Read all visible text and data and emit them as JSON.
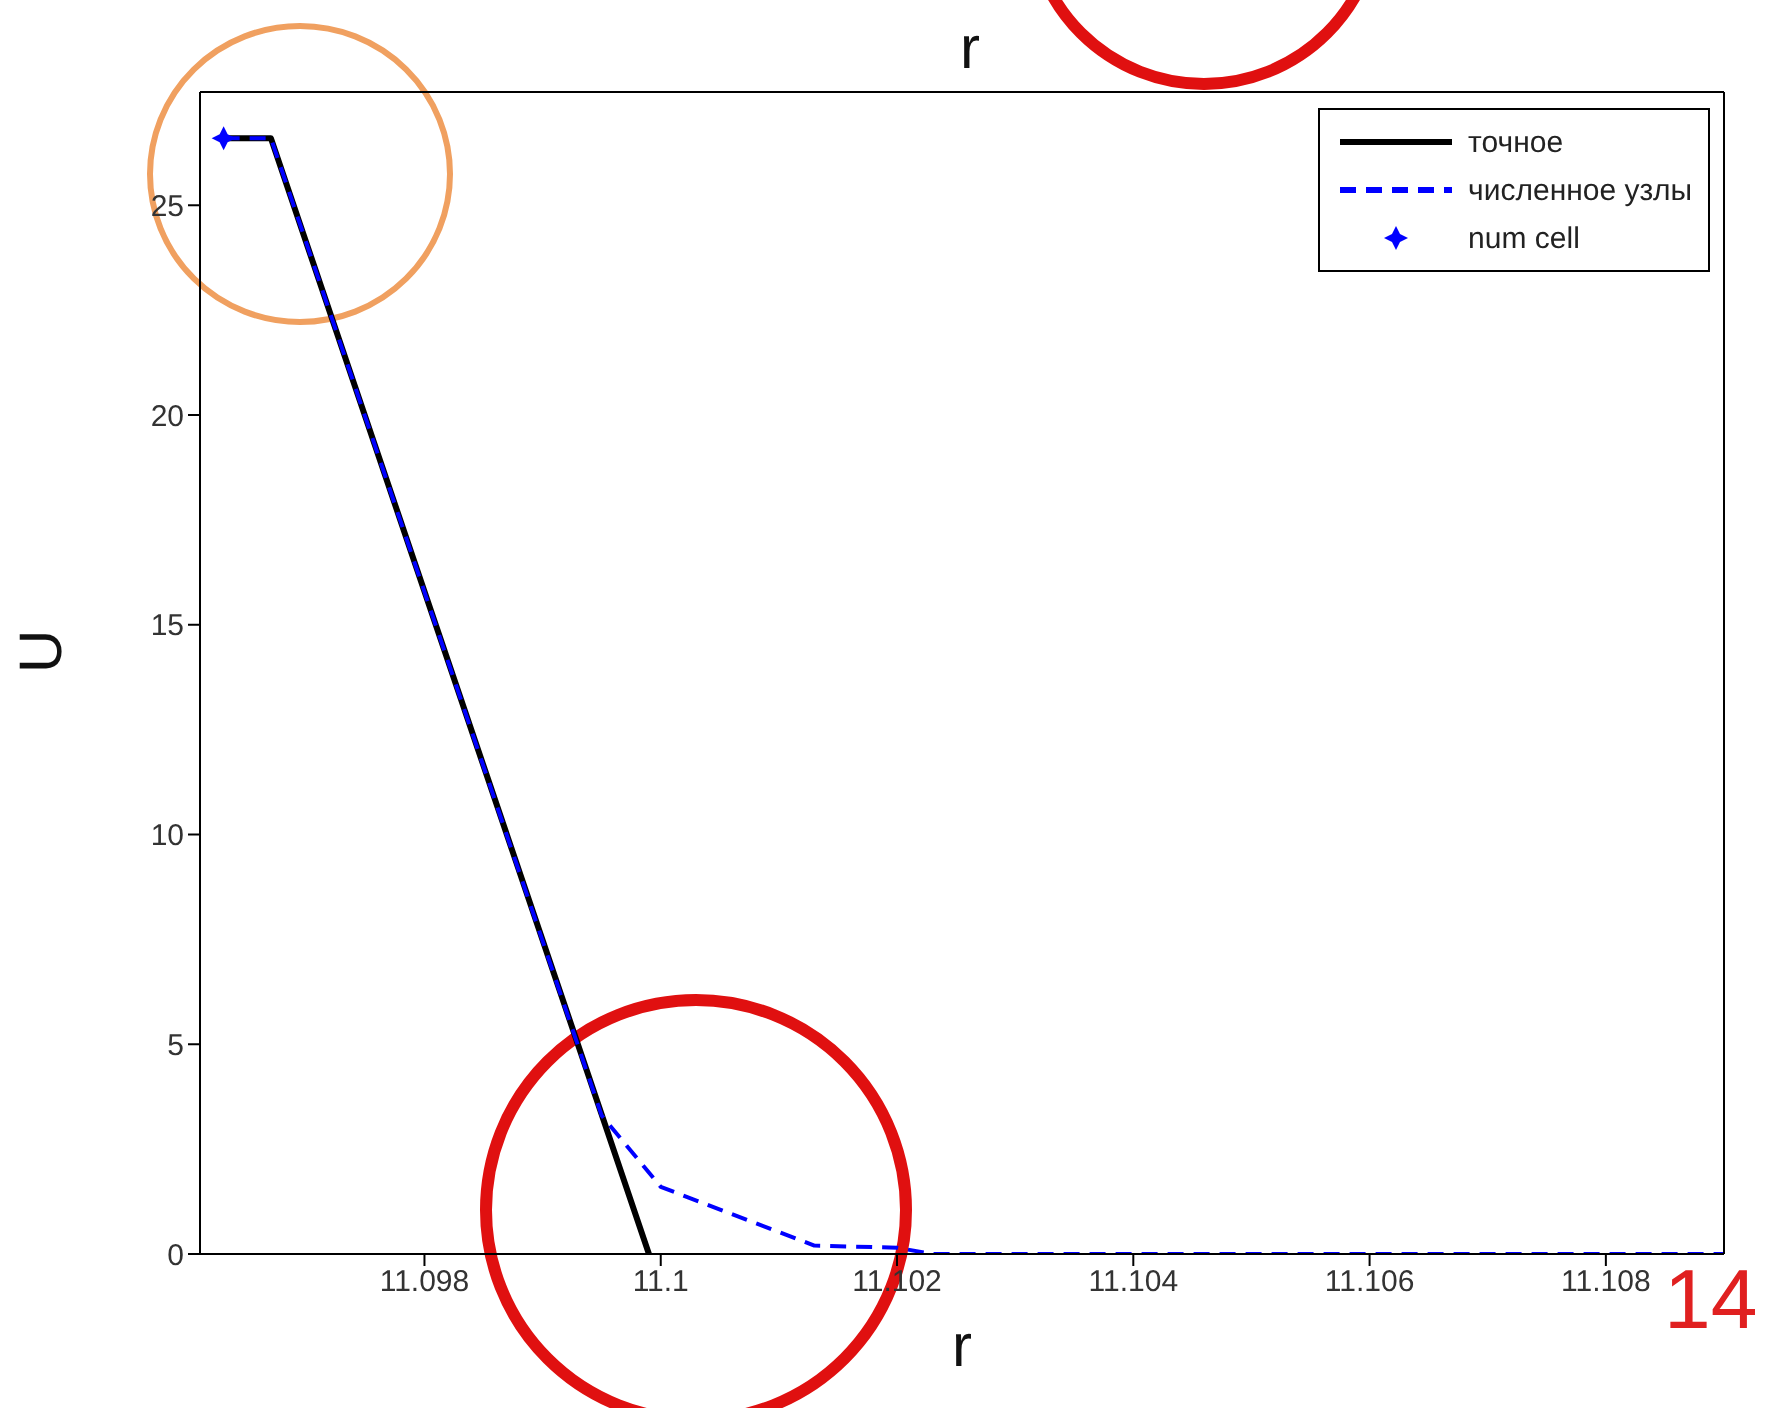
{
  "chart_data": {
    "type": "line",
    "xlabel": "r",
    "ylabel": "U",
    "xlim": [
      11.0961,
      11.109
    ],
    "ylim": [
      0,
      27.7
    ],
    "xticks": [
      11.098,
      11.1,
      11.102,
      11.104,
      11.106,
      11.108
    ],
    "yticks": [
      0,
      5,
      10,
      15,
      20,
      25
    ],
    "grid": false,
    "legend": "top right",
    "annotations": [
      "r",
      "14"
    ],
    "series": [
      {
        "name": "точное",
        "type": "line",
        "color": "#000000",
        "line_style": "solid",
        "marker": "none",
        "x": [
          11.0963,
          11.0967,
          11.0999
        ],
        "values": [
          26.6,
          26.6,
          0
        ]
      },
      {
        "name": "численное узлы",
        "type": "line",
        "color": "#0000ff",
        "line_style": "dashed",
        "marker": "none",
        "x": [
          11.0963,
          11.0967,
          11.0995,
          11.1,
          11.1013,
          11.102,
          11.1023,
          11.109
        ],
        "values": [
          26.6,
          26.6,
          3.3,
          1.6,
          0.2,
          0.15,
          0,
          0
        ]
      },
      {
        "name": "num cell",
        "type": "scatter",
        "color": "#0000ff",
        "marker": "star",
        "x": [
          11.0963
        ],
        "values": [
          26.6
        ]
      }
    ]
  }
}
